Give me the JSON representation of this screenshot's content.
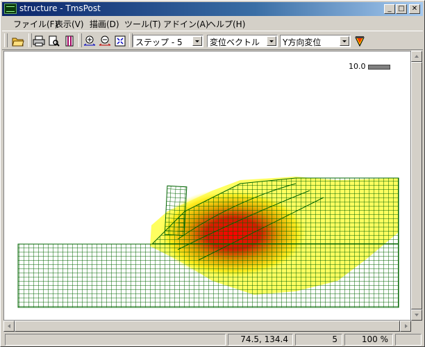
{
  "window": {
    "title": "structure - TmsPost"
  },
  "titlebar_buttons": {
    "minimize": "_",
    "maximize": "□",
    "close": "✕"
  },
  "menu": [
    "ファイル(F)",
    "表示(V)",
    "描画(D)",
    "ツール(T)",
    "アドイン(A)",
    "ヘルプ(H)"
  ],
  "toolbar": {
    "step_select": "ステップ - 5",
    "display_select": "変位ベクトル",
    "component_select": "Y方向変位",
    "icons": [
      "open-icon",
      "print-icon",
      "print-preview-icon",
      "copy-icon",
      "zoom-in-icon",
      "zoom-out-icon",
      "fit-view-icon",
      "color-palette-icon"
    ]
  },
  "canvas": {
    "vector_scale_label": "10.0"
  },
  "colors": {
    "mesh": "#006400",
    "high": "#ff0000",
    "mid": "#e0b000",
    "low": "#ffff66"
  },
  "status": {
    "coords": "74.5, 134.4",
    "step": "5",
    "zoom": "100 %"
  }
}
